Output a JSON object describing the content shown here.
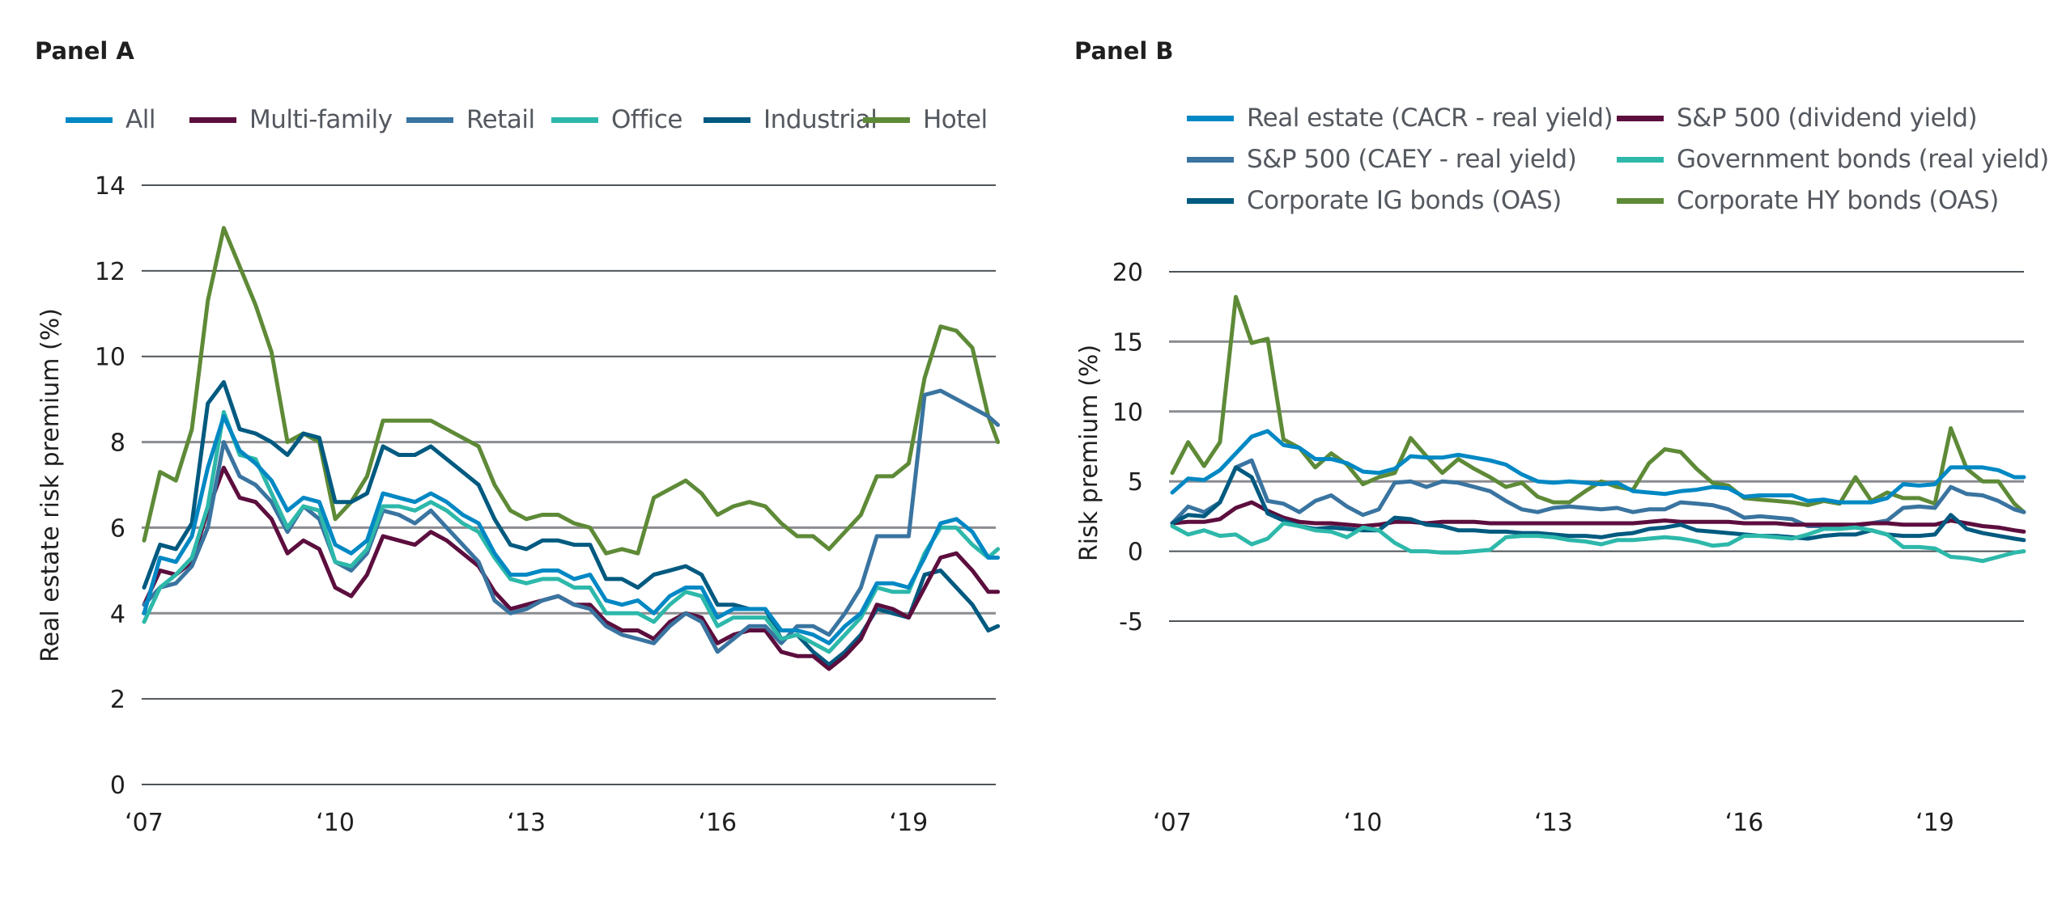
{
  "chart_data": [
    {
      "type": "line",
      "title": "Panel A",
      "xlabel": "",
      "ylabel": "Real estate risk premium (%)",
      "xlim": [
        2007,
        2020.4
      ],
      "ylim": [
        0,
        14
      ],
      "yticks": [
        0,
        2,
        4,
        6,
        8,
        10,
        12,
        14
      ],
      "xticks": [
        2007,
        2010,
        2013,
        2016,
        2019
      ],
      "xtick_labels": [
        "‘07",
        "‘10",
        "‘13",
        "‘16",
        "‘19"
      ],
      "grid": true,
      "legend_position": "top",
      "x": [
        2007.0,
        2007.25,
        2007.5,
        2007.75,
        2008.0,
        2008.25,
        2008.5,
        2008.75,
        2009.0,
        2009.25,
        2009.5,
        2009.75,
        2010.0,
        2010.25,
        2010.5,
        2010.75,
        2011.0,
        2011.25,
        2011.5,
        2011.75,
        2012.0,
        2012.25,
        2012.5,
        2012.75,
        2013.0,
        2013.25,
        2013.5,
        2013.75,
        2014.0,
        2014.25,
        2014.5,
        2014.75,
        2015.0,
        2015.25,
        2015.5,
        2015.75,
        2016.0,
        2016.25,
        2016.5,
        2016.75,
        2017.0,
        2017.25,
        2017.5,
        2017.75,
        2018.0,
        2018.25,
        2018.5,
        2018.75,
        2019.0,
        2019.25,
        2019.5,
        2019.75,
        2020.0,
        2020.25,
        2020.4
      ],
      "series": [
        {
          "name": "All",
          "color": "#0088c4",
          "values": [
            4.0,
            5.3,
            5.2,
            5.8,
            7.4,
            8.6,
            7.8,
            7.5,
            7.1,
            6.4,
            6.7,
            6.6,
            5.6,
            5.4,
            5.7,
            6.8,
            6.7,
            6.6,
            6.8,
            6.6,
            6.3,
            6.1,
            5.4,
            4.9,
            4.9,
            5.0,
            5.0,
            4.8,
            4.9,
            4.3,
            4.2,
            4.3,
            4.0,
            4.4,
            4.6,
            4.6,
            3.9,
            4.1,
            4.1,
            4.1,
            3.6,
            3.6,
            3.5,
            3.3,
            3.7,
            4.0,
            4.7,
            4.7,
            4.6,
            5.3,
            6.1,
            6.2,
            5.9,
            5.3,
            5.3
          ]
        },
        {
          "name": "Multi-family",
          "color": "#5c0e3e",
          "values": [
            4.2,
            5.0,
            4.9,
            5.2,
            6.4,
            7.4,
            6.7,
            6.6,
            6.2,
            5.4,
            5.7,
            5.5,
            4.6,
            4.4,
            4.9,
            5.8,
            5.7,
            5.6,
            5.9,
            5.7,
            5.4,
            5.1,
            4.5,
            4.1,
            4.2,
            4.3,
            4.4,
            4.2,
            4.2,
            3.8,
            3.6,
            3.6,
            3.4,
            3.8,
            4.0,
            3.9,
            3.3,
            3.5,
            3.6,
            3.6,
            3.1,
            3.0,
            3.0,
            2.7,
            3.0,
            3.4,
            4.2,
            4.1,
            3.9,
            4.6,
            5.3,
            5.4,
            5.0,
            4.5,
            4.5
          ]
        },
        {
          "name": "Retail",
          "color": "#3a74a0",
          "values": [
            4.2,
            4.6,
            4.7,
            5.1,
            6.0,
            8.0,
            7.2,
            7.0,
            6.6,
            5.9,
            6.5,
            6.2,
            5.2,
            5.0,
            5.4,
            6.4,
            6.3,
            6.1,
            6.4,
            6.0,
            5.6,
            5.2,
            4.3,
            4.0,
            4.1,
            4.3,
            4.4,
            4.2,
            4.1,
            3.7,
            3.5,
            3.4,
            3.3,
            3.7,
            4.0,
            3.8,
            3.1,
            3.4,
            3.7,
            3.7,
            3.3,
            3.7,
            3.7,
            3.5,
            4.0,
            4.6,
            5.8,
            5.8,
            5.8,
            9.1,
            9.2,
            9.0,
            8.8,
            8.6,
            8.4
          ]
        },
        {
          "name": "Office",
          "color": "#2db8aa",
          "values": [
            3.8,
            4.6,
            4.9,
            5.3,
            6.5,
            8.7,
            7.7,
            7.6,
            6.8,
            6.0,
            6.5,
            6.4,
            5.2,
            5.1,
            5.5,
            6.5,
            6.5,
            6.4,
            6.6,
            6.4,
            6.1,
            5.9,
            5.3,
            4.8,
            4.7,
            4.8,
            4.8,
            4.6,
            4.6,
            4.0,
            4.0,
            4.0,
            3.8,
            4.2,
            4.5,
            4.4,
            3.7,
            3.9,
            3.9,
            3.9,
            3.4,
            3.5,
            3.3,
            3.1,
            3.5,
            3.9,
            4.6,
            4.5,
            4.5,
            5.4,
            6.0,
            6.0,
            5.6,
            5.3,
            5.5
          ]
        },
        {
          "name": "Industrial",
          "color": "#005a80",
          "values": [
            4.6,
            5.6,
            5.5,
            6.1,
            8.9,
            9.4,
            8.3,
            8.2,
            8.0,
            7.7,
            8.2,
            8.1,
            6.6,
            6.6,
            6.8,
            7.9,
            7.7,
            7.7,
            7.9,
            7.6,
            7.3,
            7.0,
            6.2,
            5.6,
            5.5,
            5.7,
            5.7,
            5.6,
            5.6,
            4.8,
            4.8,
            4.6,
            4.9,
            5.0,
            5.1,
            4.9,
            4.2,
            4.2,
            4.1,
            4.1,
            3.4,
            3.5,
            3.1,
            2.8,
            3.1,
            3.5,
            4.1,
            4.0,
            3.9,
            4.9,
            5.0,
            4.6,
            4.2,
            3.6,
            3.7
          ]
        },
        {
          "name": "Hotel",
          "color": "#5e8a37",
          "values": [
            5.7,
            7.3,
            7.1,
            8.3,
            11.3,
            13.0,
            12.1,
            11.2,
            10.1,
            8.0,
            8.2,
            8.0,
            6.2,
            6.6,
            7.2,
            8.5,
            8.5,
            8.5,
            8.5,
            8.3,
            8.1,
            7.9,
            7.0,
            6.4,
            6.2,
            6.3,
            6.3,
            6.1,
            6.0,
            5.4,
            5.5,
            5.4,
            6.7,
            6.9,
            7.1,
            6.8,
            6.3,
            6.5,
            6.6,
            6.5,
            6.1,
            5.8,
            5.8,
            5.5,
            5.9,
            6.3,
            7.2,
            7.2,
            7.5,
            9.5,
            10.7,
            10.6,
            10.2,
            8.6,
            8.0
          ]
        }
      ]
    },
    {
      "type": "line",
      "title": "Panel B",
      "xlabel": "",
      "ylabel": "Risk premium (%)",
      "xlim": [
        2007,
        2020.4
      ],
      "ylim": [
        -5,
        20
      ],
      "yticks": [
        -5,
        0,
        5,
        10,
        15,
        20
      ],
      "xticks": [
        2007,
        2010,
        2013,
        2016,
        2019
      ],
      "xtick_labels": [
        "‘07",
        "‘10",
        "‘13",
        "‘16",
        "‘19"
      ],
      "grid": true,
      "legend_position": "top",
      "x": [
        2007.0,
        2007.25,
        2007.5,
        2007.75,
        2008.0,
        2008.25,
        2008.5,
        2008.75,
        2009.0,
        2009.25,
        2009.5,
        2009.75,
        2010.0,
        2010.25,
        2010.5,
        2010.75,
        2011.0,
        2011.25,
        2011.5,
        2011.75,
        2012.0,
        2012.25,
        2012.5,
        2012.75,
        2013.0,
        2013.25,
        2013.5,
        2013.75,
        2014.0,
        2014.25,
        2014.5,
        2014.75,
        2015.0,
        2015.25,
        2015.5,
        2015.75,
        2016.0,
        2016.25,
        2016.5,
        2016.75,
        2017.0,
        2017.25,
        2017.5,
        2017.75,
        2018.0,
        2018.25,
        2018.5,
        2018.75,
        2019.0,
        2019.25,
        2019.5,
        2019.75,
        2020.0,
        2020.25,
        2020.4
      ],
      "series": [
        {
          "name": "Real estate (CACR - real yield)",
          "color": "#0088c4",
          "values": [
            4.2,
            5.2,
            5.1,
            5.8,
            7.0,
            8.2,
            8.6,
            7.6,
            7.4,
            6.6,
            6.6,
            6.3,
            5.7,
            5.6,
            5.9,
            6.8,
            6.7,
            6.7,
            6.9,
            6.7,
            6.5,
            6.2,
            5.5,
            5.0,
            4.9,
            5.0,
            4.9,
            4.8,
            4.9,
            4.3,
            4.2,
            4.1,
            4.3,
            4.4,
            4.6,
            4.5,
            3.9,
            4.0,
            4.0,
            4.0,
            3.6,
            3.7,
            3.5,
            3.5,
            3.5,
            3.8,
            4.8,
            4.7,
            4.8,
            6.0,
            6.0,
            6.0,
            5.8,
            5.3,
            5.3
          ]
        },
        {
          "name": "S&P 500 (dividend yield)",
          "color": "#5c0e3e",
          "values": [
            2.0,
            2.1,
            2.1,
            2.3,
            3.1,
            3.5,
            2.9,
            2.4,
            2.1,
            2.0,
            2.0,
            1.9,
            1.8,
            1.9,
            2.1,
            2.1,
            2.0,
            2.1,
            2.1,
            2.1,
            2.0,
            2.0,
            2.0,
            2.0,
            2.0,
            2.0,
            2.0,
            2.0,
            2.0,
            2.0,
            2.1,
            2.2,
            2.1,
            2.1,
            2.1,
            2.1,
            2.0,
            2.0,
            2.0,
            1.9,
            1.9,
            1.9,
            1.9,
            1.9,
            2.0,
            2.0,
            1.9,
            1.9,
            1.9,
            2.2,
            2.0,
            1.8,
            1.7,
            1.5,
            1.4
          ]
        },
        {
          "name": "S&P 500 (CAEY - real yield)",
          "color": "#3a74a0",
          "values": [
            2.0,
            3.2,
            2.8,
            3.5,
            6.0,
            6.5,
            3.6,
            3.4,
            2.8,
            3.6,
            4.0,
            3.2,
            2.6,
            3.0,
            4.9,
            5.0,
            4.6,
            5.0,
            4.9,
            4.6,
            4.3,
            3.6,
            3.0,
            2.8,
            3.1,
            3.2,
            3.1,
            3.0,
            3.1,
            2.8,
            3.0,
            3.0,
            3.5,
            3.4,
            3.3,
            3.0,
            2.4,
            2.5,
            2.4,
            2.3,
            1.8,
            1.8,
            1.7,
            1.8,
            2.0,
            2.2,
            3.1,
            3.2,
            3.1,
            4.6,
            4.1,
            4.0,
            3.6,
            3.0,
            2.8
          ]
        },
        {
          "name": "Government bonds (real yield)",
          "color": "#2db8aa",
          "values": [
            1.8,
            1.2,
            1.5,
            1.1,
            1.2,
            0.5,
            0.9,
            2.0,
            1.8,
            1.5,
            1.4,
            1.0,
            1.7,
            1.5,
            0.6,
            0.0,
            0.0,
            -0.1,
            -0.1,
            0.0,
            0.1,
            1.0,
            1.1,
            1.1,
            1.0,
            0.8,
            0.7,
            0.5,
            0.8,
            0.8,
            0.9,
            1.0,
            0.9,
            0.7,
            0.4,
            0.5,
            1.1,
            1.1,
            1.0,
            0.9,
            1.2,
            1.6,
            1.6,
            1.7,
            1.5,
            1.2,
            0.3,
            0.3,
            0.2,
            -0.4,
            -0.5,
            -0.7,
            -0.4,
            -0.1,
            0.0
          ]
        },
        {
          "name": "Corporate IG bonds (OAS)",
          "color": "#005a80",
          "values": [
            2.0,
            2.6,
            2.5,
            3.5,
            6.0,
            5.3,
            2.7,
            2.2,
            1.8,
            1.6,
            1.7,
            1.6,
            1.5,
            1.5,
            2.4,
            2.3,
            1.9,
            1.8,
            1.5,
            1.5,
            1.4,
            1.4,
            1.3,
            1.3,
            1.2,
            1.1,
            1.1,
            1.0,
            1.2,
            1.3,
            1.6,
            1.7,
            1.9,
            1.5,
            1.4,
            1.3,
            1.2,
            1.1,
            1.1,
            1.0,
            0.9,
            1.1,
            1.2,
            1.2,
            1.5,
            1.2,
            1.1,
            1.1,
            1.2,
            2.6,
            1.6,
            1.3,
            1.1,
            0.9,
            0.8
          ]
        },
        {
          "name": "Corporate HY bonds (OAS)",
          "color": "#5e8a37",
          "values": [
            5.6,
            7.8,
            6.1,
            7.8,
            18.2,
            14.9,
            15.2,
            8.0,
            7.4,
            6.0,
            7.0,
            6.2,
            4.8,
            5.3,
            5.6,
            8.1,
            6.8,
            5.6,
            6.6,
            5.9,
            5.3,
            4.6,
            4.9,
            3.9,
            3.5,
            3.5,
            4.3,
            5.0,
            4.6,
            4.4,
            6.3,
            7.3,
            7.1,
            5.9,
            4.9,
            4.7,
            3.8,
            3.7,
            3.6,
            3.5,
            3.3,
            3.6,
            3.4,
            5.3,
            3.6,
            4.2,
            3.8,
            3.8,
            3.4,
            8.8,
            5.9,
            5.0,
            5.0,
            3.4,
            2.8
          ]
        }
      ]
    }
  ]
}
